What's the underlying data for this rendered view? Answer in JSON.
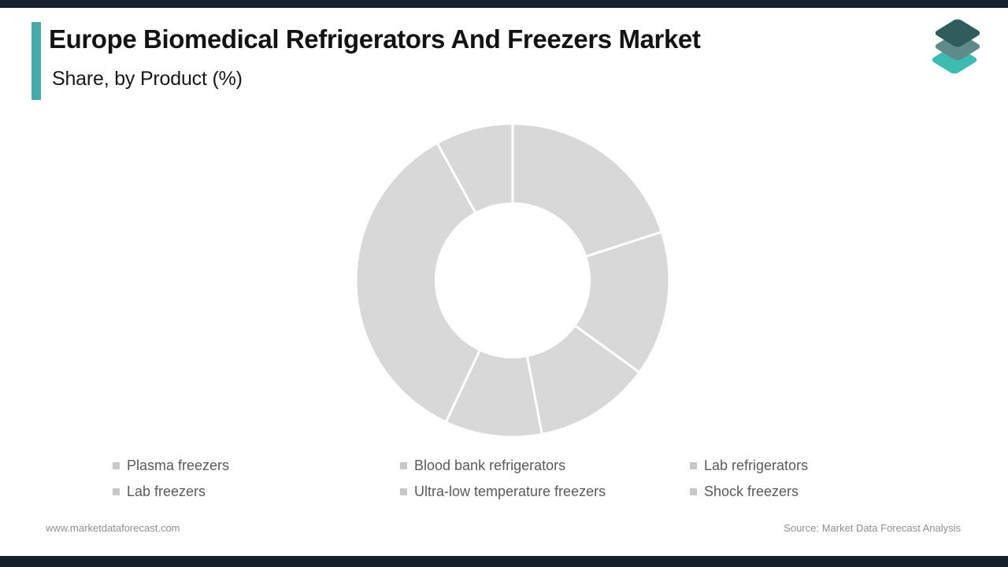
{
  "header": {
    "title": "Europe Biomedical Refrigerators And Freezers Market",
    "subtitle": "Share, by Product (%)",
    "accent_color": "#47aaa8"
  },
  "logo": {
    "description": "three stacked diamond layers",
    "layer_colors": [
      "#2f5d5b",
      "#5d8b89",
      "#3cbcb1"
    ]
  },
  "chart_data": {
    "type": "pie",
    "subtype": "donut",
    "title": "Europe Biomedical Refrigerators And Freezers Market Share, by Product (%)",
    "categories": [
      "Plasma freezers",
      "Blood bank refrigerators",
      "Lab refrigerators",
      "Lab freezers",
      "Ultra-low temperature freezers",
      "Shock freezers"
    ],
    "values": [
      20,
      15,
      12,
      10,
      35,
      8
    ],
    "unit": "%",
    "start_angle_deg": 0,
    "direction": "clockwise",
    "segment_color": "#d8d8d8",
    "separator_color": "#ffffff",
    "inner_radius_ratio": 0.49,
    "legend_position": "bottom",
    "data_labels": false
  },
  "legend": {
    "marker_color": "#c7c7c7",
    "text_color": "#5a5a5a"
  },
  "footer": {
    "website": "www.marketdataforecast.com",
    "source": "Source: Market Data Forecast Analysis"
  },
  "theme": {
    "border_bar_color": "#17212b",
    "background": "#ffffff"
  }
}
